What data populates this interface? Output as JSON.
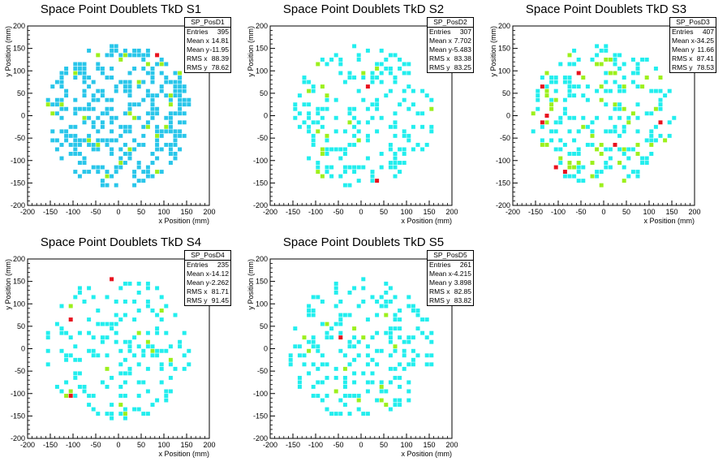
{
  "chart_data": [
    {
      "type": "heatmap",
      "title": "Space Point Doublets TkD S1",
      "xlabel": "x Position (mm)",
      "ylabel": "y Position (mm)",
      "xlim": [
        -200,
        200
      ],
      "ylim": [
        -200,
        200
      ],
      "xticks": [
        "-200",
        "-150",
        "-100",
        "-50",
        "0",
        "50",
        "100",
        "150",
        "200"
      ],
      "yticks": [
        "-200",
        "-150",
        "-100",
        "-50",
        "0",
        "50",
        "100",
        "150",
        "200"
      ],
      "grid": false,
      "stats": {
        "name": "SP_PosD1",
        "rows": [
          {
            "label": "Entries",
            "value": "395"
          },
          {
            "label": "Mean x",
            "value": "14.81"
          },
          {
            "label": "Mean y",
            "value": "-11.95"
          },
          {
            "label": "RMS x",
            "value": "88.39"
          },
          {
            "label": "RMS y",
            "value": "78.62"
          }
        ]
      },
      "n_cells": 310,
      "n_hot": 18,
      "n_max": 3,
      "seed": 11,
      "fill": "#29c6ea",
      "cell_size": 10,
      "cells": [
        {
          "x": 85,
          "y": 135,
          "z": 3
        },
        {
          "x": -45,
          "y": 135,
          "z": 2
        },
        {
          "x": 115,
          "y": 45,
          "z": 2
        },
        {
          "x": 105,
          "y": -25,
          "z": 2
        },
        {
          "x": -25,
          "y": -135,
          "z": 2
        },
        {
          "x": 5,
          "y": -105,
          "z": 2
        },
        {
          "x": 135,
          "y": 95,
          "z": 2
        },
        {
          "x": -95,
          "y": 95,
          "z": 2
        }
      ]
    },
    {
      "type": "heatmap",
      "title": "Space Point Doublets TkD S2",
      "xlabel": "x Position (mm)",
      "ylabel": "y Position (mm)",
      "xlim": [
        -200,
        200
      ],
      "ylim": [
        -200,
        200
      ],
      "xticks": [
        "-200",
        "-150",
        "-100",
        "-50",
        "0",
        "50",
        "100",
        "150",
        "200"
      ],
      "yticks": [
        "-200",
        "-150",
        "-100",
        "-50",
        "0",
        "50",
        "100",
        "150",
        "200"
      ],
      "grid": false,
      "stats": {
        "name": "SP_PosD2",
        "rows": [
          {
            "label": "Entries",
            "value": "307"
          },
          {
            "label": "Mean x",
            "value": "7.702"
          },
          {
            "label": "Mean y",
            "value": "-5.483"
          },
          {
            "label": "RMS x",
            "value": "83.38"
          },
          {
            "label": "RMS y",
            "value": "83.25"
          }
        ]
      },
      "n_cells": 190,
      "n_hot": 14,
      "n_max": 3,
      "seed": 23,
      "fill": "#22eeee",
      "cell_size": 10,
      "cells": [
        {
          "x": 15,
          "y": 65,
          "z": 3
        },
        {
          "x": 35,
          "y": -145,
          "z": 3
        },
        {
          "x": -95,
          "y": 115,
          "z": 2
        }
      ]
    },
    {
      "type": "heatmap",
      "title": "Space Point Doublets TkD S3",
      "xlabel": "x Position (mm)",
      "ylabel": "y Position (mm)",
      "xlim": [
        -200,
        200
      ],
      "ylim": [
        -200,
        200
      ],
      "xticks": [
        "-200",
        "-150",
        "-100",
        "-50",
        "0",
        "50",
        "100",
        "150",
        "200"
      ],
      "yticks": [
        "-200",
        "-150",
        "-100",
        "-50",
        "0",
        "50",
        "100",
        "150",
        "200"
      ],
      "grid": false,
      "stats": {
        "name": "SP_PosD3",
        "rows": [
          {
            "label": "Entries",
            "value": "407"
          },
          {
            "label": "Mean x",
            "value": "-34.25"
          },
          {
            "label": "Mean y",
            "value": "11.66"
          },
          {
            "label": "RMS x",
            "value": "87.41"
          },
          {
            "label": "RMS y",
            "value": "78.53"
          }
        ]
      },
      "n_cells": 215,
      "n_hot": 50,
      "n_max": 3,
      "seed": 37,
      "fill": "#22eeee",
      "cell_size": 10,
      "cells": [
        {
          "x": -125,
          "y": 0,
          "z": 3
        },
        {
          "x": -135,
          "y": -15,
          "z": 3
        },
        {
          "x": -105,
          "y": -115,
          "z": 3
        },
        {
          "x": -85,
          "y": -125,
          "z": 3
        },
        {
          "x": -55,
          "y": 95,
          "z": 3
        },
        {
          "x": 25,
          "y": -65,
          "z": 3
        },
        {
          "x": 125,
          "y": -15,
          "z": 3
        },
        {
          "x": -135,
          "y": 65,
          "z": 3
        }
      ]
    },
    {
      "type": "heatmap",
      "title": "Space Point Doublets TkD S4",
      "xlabel": "x Position (mm)",
      "ylabel": "y Position (mm)",
      "xlim": [
        -200,
        200
      ],
      "ylim": [
        -200,
        200
      ],
      "xticks": [
        "-200",
        "-150",
        "-100",
        "-50",
        "0",
        "50",
        "100",
        "150",
        "200"
      ],
      "yticks": [
        "-200",
        "-150",
        "-100",
        "-50",
        "0",
        "50",
        "100",
        "150",
        "200"
      ],
      "grid": false,
      "stats": {
        "name": "SP_PosD4",
        "rows": [
          {
            "label": "Entries",
            "value": "235"
          },
          {
            "label": "Mean x",
            "value": "-14.12"
          },
          {
            "label": "Mean y",
            "value": "-2.262"
          },
          {
            "label": "RMS x",
            "value": "81.71"
          },
          {
            "label": "RMS y",
            "value": "91.45"
          }
        ]
      },
      "n_cells": 165,
      "n_hot": 10,
      "n_max": 3,
      "seed": 41,
      "fill": "#22eeee",
      "cell_size": 10,
      "cells": [
        {
          "x": -15,
          "y": 155,
          "z": 3
        },
        {
          "x": -105,
          "y": 65,
          "z": 3
        },
        {
          "x": -105,
          "y": -105,
          "z": 3
        },
        {
          "x": -115,
          "y": -105,
          "z": 2
        }
      ]
    },
    {
      "type": "heatmap",
      "title": "Space Point Doublets TkD S5",
      "xlabel": "x Position (mm)",
      "ylabel": "y Position (mm)",
      "xlim": [
        -200,
        200
      ],
      "ylim": [
        -200,
        200
      ],
      "xticks": [
        "-200",
        "-150",
        "-100",
        "-50",
        "0",
        "50",
        "100",
        "150",
        "200"
      ],
      "yticks": [
        "-200",
        "-150",
        "-100",
        "-50",
        "0",
        "50",
        "100",
        "150",
        "200"
      ],
      "grid": false,
      "stats": {
        "name": "SP_PosD5",
        "rows": [
          {
            "label": "Entries",
            "value": "261"
          },
          {
            "label": "Mean x",
            "value": "-4.215"
          },
          {
            "label": "Mean y",
            "value": "3.898"
          },
          {
            "label": "RMS x",
            "value": "82.85"
          },
          {
            "label": "RMS y",
            "value": "83.82"
          }
        ]
      },
      "n_cells": 195,
      "n_hot": 12,
      "n_max": 3,
      "seed": 53,
      "fill": "#22eeee",
      "cell_size": 10,
      "cells": [
        {
          "x": -45,
          "y": 25,
          "z": 3
        },
        {
          "x": 5,
          "y": 25,
          "z": 2
        }
      ]
    }
  ]
}
